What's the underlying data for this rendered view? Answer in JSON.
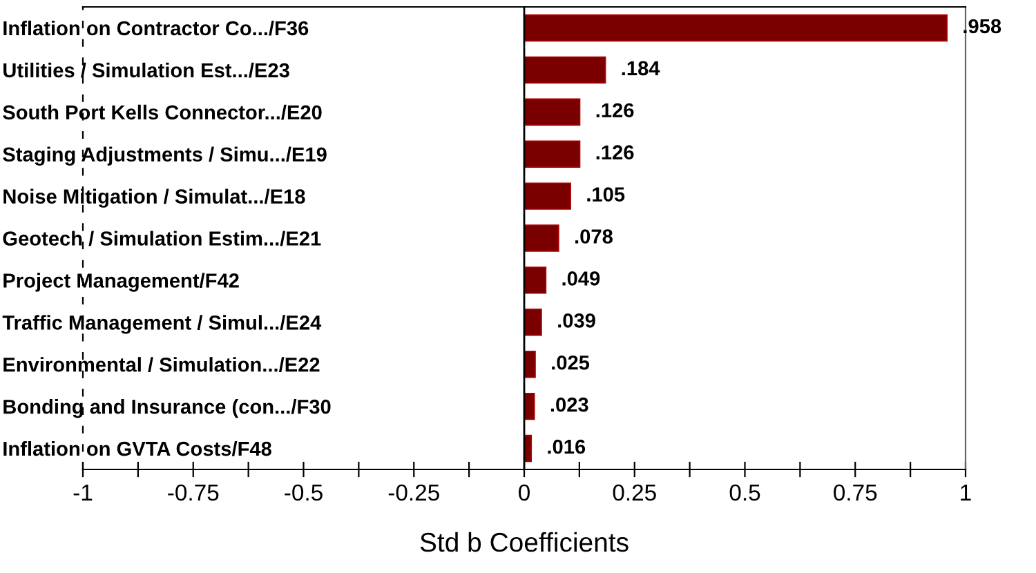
{
  "chart_data": {
    "type": "bar",
    "orientation": "horizontal",
    "xlabel": "Std b Coefficients",
    "categories": [
      "Inflation on Contractor Co.../F36",
      "Utilities / Simulation Est.../E23",
      "South Port Kells Connector.../E20",
      "Staging Adjustments / Simu.../E19",
      "Noise Mitigation / Simulat.../E18",
      "Geotech / Simulation Estim.../E21",
      "Project Management/F42",
      "Traffic Management / Simul.../E24",
      "Environmental / Simulation.../E22",
      "Bonding and Insurance (con.../F30",
      "Inflation on GVTA Costs/F48"
    ],
    "values": [
      0.958,
      0.184,
      0.126,
      0.126,
      0.105,
      0.078,
      0.049,
      0.039,
      0.025,
      0.023,
      0.016
    ],
    "value_labels": [
      ".958",
      ".184",
      ".126",
      ".126",
      ".105",
      ".078",
      ".049",
      ".039",
      ".025",
      ".023",
      ".016"
    ],
    "color": "#7a0000",
    "xlim": [
      -1,
      1
    ],
    "xticks": [
      -1,
      {
        "value": -0.875,
        "label": null
      },
      -0.75,
      {
        "value": -0.625,
        "label": null
      },
      -0.5,
      {
        "value": -0.375,
        "label": null
      },
      -0.25,
      {
        "value": -0.125,
        "label": null
      },
      0,
      {
        "value": 0.125,
        "label": null
      },
      0.25,
      {
        "value": 0.375,
        "label": null
      },
      0.5,
      {
        "value": 0.625,
        "label": null
      },
      0.75,
      {
        "value": 0.875,
        "label": null
      },
      1
    ],
    "ref_lines": [
      {
        "axis": "x",
        "value": 0,
        "color": "#000000",
        "line_style": "solid"
      }
    ],
    "grid": false,
    "legend": false
  }
}
